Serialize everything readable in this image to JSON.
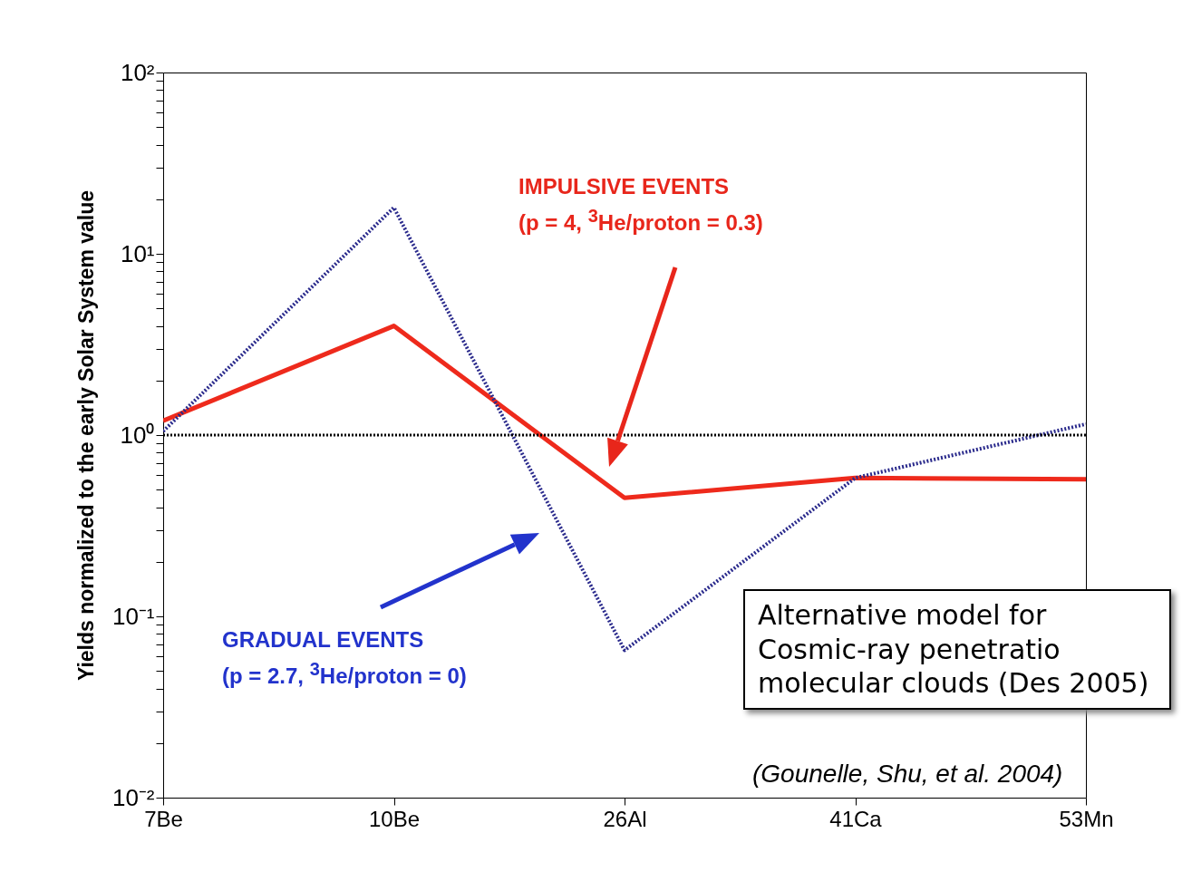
{
  "chart_data": {
    "type": "line",
    "ylabel": "Yields normalized to the early Solar System value",
    "categories": [
      "7Be",
      "10Be",
      "26Al",
      "41Ca",
      "53Mn"
    ],
    "series": [
      {
        "color": "#ee2a1c",
        "line_style": "solid",
        "values": [
          1.2,
          4,
          0.45,
          0.58,
          0.57
        ]
      },
      {
        "color": "#2a2a8c",
        "line_style": "dotted",
        "values": [
          1.05,
          18,
          0.065,
          0.58,
          1.15
        ]
      }
    ],
    "log": true,
    "ylim": [
      0.01,
      100
    ],
    "yticks": [
      {
        "value": 0.01,
        "label": "10⁻²"
      },
      {
        "value": 0.02,
        "label": null
      },
      {
        "value": 0.03,
        "label": null
      },
      {
        "value": 0.04,
        "label": null
      },
      {
        "value": 0.05,
        "label": null
      },
      {
        "value": 0.06,
        "label": null
      },
      {
        "value": 0.07,
        "label": null
      },
      {
        "value": 0.08,
        "label": null
      },
      {
        "value": 0.09,
        "label": null
      },
      {
        "value": 0.1,
        "label": "10⁻¹"
      },
      {
        "value": 0.2,
        "label": null
      },
      {
        "value": 0.3,
        "label": null
      },
      {
        "value": 0.4,
        "label": null
      },
      {
        "value": 0.5,
        "label": null
      },
      {
        "value": 0.6,
        "label": null
      },
      {
        "value": 0.7,
        "label": null
      },
      {
        "value": 0.8,
        "label": null
      },
      {
        "value": 0.9,
        "label": null
      },
      {
        "value": 1,
        "label": "10⁰"
      },
      {
        "value": 2,
        "label": null
      },
      {
        "value": 3,
        "label": null
      },
      {
        "value": 4,
        "label": null
      },
      {
        "value": 5,
        "label": null
      },
      {
        "value": 6,
        "label": null
      },
      {
        "value": 7,
        "label": null
      },
      {
        "value": 8,
        "label": null
      },
      {
        "value": 9,
        "label": null
      },
      {
        "value": 10,
        "label": "10¹"
      },
      {
        "value": 20,
        "label": null
      },
      {
        "value": 30,
        "label": null
      },
      {
        "value": 40,
        "label": null
      },
      {
        "value": 50,
        "label": null
      },
      {
        "value": 60,
        "label": null
      },
      {
        "value": 70,
        "label": null
      },
      {
        "value": 80,
        "label": null
      },
      {
        "value": 90,
        "label": null
      },
      {
        "value": 100,
        "label": "10²"
      }
    ],
    "grid": false,
    "ref_lines": [
      {
        "axis": "y",
        "value": 1,
        "color": "#000000",
        "line_style": "dotted"
      }
    ],
    "annotations": [
      "IMPULSIVE EVENTS",
      "(p = 4, $^{3}$He/proton = 0.3)",
      "GRADUAL EVENTS",
      "(p = 2.7, $^{3}$He/proton = 0)",
      "Alternative model for Cosmic-ray penetratio molecular clouds (Des 2005)",
      "(Gounelle, Shu, et al. 2004)"
    ]
  }
}
